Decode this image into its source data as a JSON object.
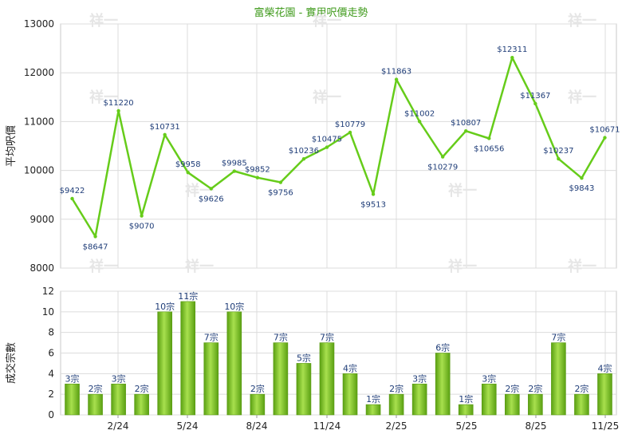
{
  "chart_data": [
    {
      "type": "line",
      "title": "富榮花園 - 實用呎價走勢",
      "ylabel": "平均呎價",
      "ylim": [
        8000,
        13000
      ],
      "yticks": [
        8000,
        9000,
        10000,
        11000,
        12000,
        13000
      ],
      "xtick_labels": [
        "2/24",
        "5/24",
        "8/24",
        "11/24",
        "2/25",
        "5/25",
        "8/25",
        "11/25"
      ],
      "values": [
        9422,
        8647,
        11220,
        9070,
        10731,
        9958,
        9626,
        9985,
        9852,
        9756,
        10236,
        10475,
        10779,
        9513,
        11863,
        11002,
        10279,
        10807,
        10656,
        12311,
        11367,
        10237,
        9843,
        10671
      ],
      "labels": [
        "$9422",
        "$8647",
        "$11220",
        "$9070",
        "$10731",
        "$9958",
        "$9626",
        "$9985",
        "$9852",
        "$9756",
        "$10236",
        "$10475",
        "$10779",
        "$9513",
        "$11863",
        "$11002",
        "$10279",
        "$10807",
        "$10656",
        "$12311",
        "$11367",
        "$10237",
        "$9843",
        "$10671"
      ],
      "color": "#66cc1a",
      "grid": true
    },
    {
      "type": "bar",
      "ylabel": "成交宗數",
      "ylim": [
        0,
        12
      ],
      "yticks": [
        0,
        2,
        4,
        6,
        8,
        10,
        12
      ],
      "xtick_labels": [
        "2/24",
        "5/24",
        "8/24",
        "11/24",
        "2/25",
        "5/25",
        "8/25",
        "11/25"
      ],
      "values": [
        3,
        2,
        3,
        2,
        10,
        11,
        7,
        10,
        2,
        7,
        5,
        7,
        4,
        1,
        2,
        3,
        6,
        1,
        3,
        2,
        2,
        7,
        2,
        4
      ],
      "labels": [
        "3宗",
        "2宗",
        "3宗",
        "2宗",
        "10宗",
        "11宗",
        "7宗",
        "10宗",
        "2宗",
        "7宗",
        "5宗",
        "7宗",
        "4宗",
        "1宗",
        "2宗",
        "3宗",
        "6宗",
        "1宗",
        "3宗",
        "2宗",
        "2宗",
        "7宗",
        "2宗",
        "4宗"
      ],
      "color": "#76c41d",
      "grid": true
    }
  ],
  "watermark": "祥一"
}
